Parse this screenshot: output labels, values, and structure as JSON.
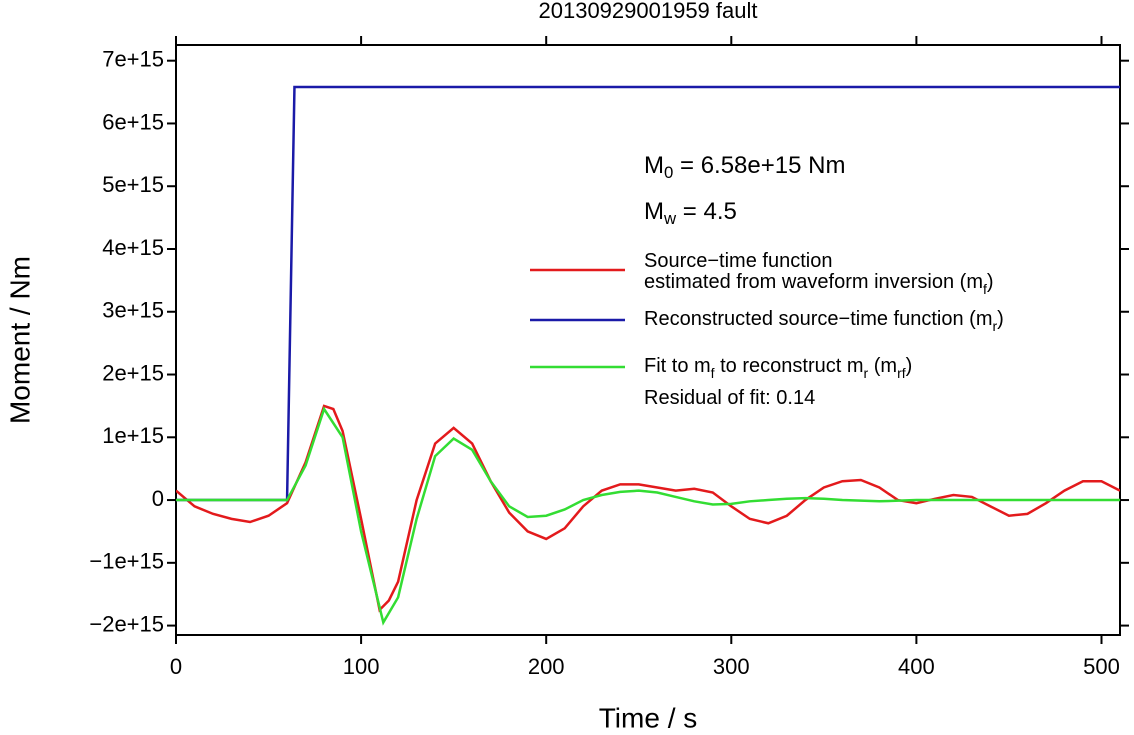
{
  "chart_data": {
    "type": "line",
    "title": "20130929001959 fault",
    "xlabel": "Time / s",
    "ylabel": "Moment / Nm",
    "xlim": [
      0,
      510
    ],
    "ylim": [
      -2150000000000000.0,
      7250000000000000.0
    ],
    "xticks": [
      0,
      100,
      200,
      300,
      400,
      500
    ],
    "yticks": [
      {
        "value": -2000000000000000.0,
        "label": "−2e+15"
      },
      {
        "value": -1000000000000000.0,
        "label": "−1e+15"
      },
      0,
      {
        "value": 1000000000000000.0,
        "label": "1e+15"
      },
      {
        "value": 2000000000000000.0,
        "label": "2e+15"
      },
      {
        "value": 3000000000000000.0,
        "label": "3e+15"
      },
      {
        "value": 4000000000000000.0,
        "label": "4e+15"
      },
      {
        "value": 5000000000000000.0,
        "label": "5e+15"
      },
      {
        "value": 6000000000000000.0,
        "label": "6e+15"
      },
      {
        "value": 7000000000000000.0,
        "label": "7e+15"
      }
    ],
    "annotations": [
      [
        "M",
        "0",
        " = 6.58e+15 Nm"
      ],
      [
        "M",
        "w",
        " = 4.5"
      ]
    ],
    "series": [
      {
        "name": [
          [
            "Source−time function"
          ],
          [
            "estimated from waveform inversion (m",
            "f",
            ")"
          ]
        ],
        "color": "#e31a1c",
        "x": [
          0,
          10,
          20,
          30,
          40,
          50,
          60,
          70,
          80,
          85,
          90,
          100,
          110,
          115,
          120,
          130,
          140,
          150,
          160,
          170,
          180,
          190,
          200,
          210,
          220,
          230,
          240,
          250,
          260,
          270,
          280,
          290,
          300,
          310,
          320,
          330,
          340,
          350,
          360,
          370,
          380,
          390,
          400,
          410,
          420,
          430,
          440,
          450,
          460,
          470,
          480,
          490,
          500,
          510
        ],
        "values": [
          150000000000000.0,
          -100000000000000.0,
          -220000000000000.0,
          -300000000000000.0,
          -350000000000000.0,
          -250000000000000.0,
          -50000000000000.0,
          600000000000000.0,
          1500000000000000.0,
          1450000000000000.0,
          1100000000000000.0,
          -300000000000000.0,
          -1750000000000000.0,
          -1600000000000000.0,
          -1300000000000000.0,
          0,
          900000000000000.0,
          1150000000000000.0,
          900000000000000.0,
          300000000000000.0,
          -200000000000000.0,
          -500000000000000.0,
          -620000000000000.0,
          -450000000000000.0,
          -100000000000000.0,
          150000000000000.0,
          250000000000000.0,
          250000000000000.0,
          200000000000000.0,
          150000000000000.0,
          180000000000000.0,
          120000000000000.0,
          -100000000000000.0,
          -300000000000000.0,
          -370000000000000.0,
          -250000000000000.0,
          0,
          200000000000000.0,
          300000000000000.0,
          320000000000000.0,
          200000000000000.0,
          0,
          -50000000000000.0,
          20000000000000.0,
          80000000000000.0,
          50000000000000.0,
          -100000000000000.0,
          -250000000000000.0,
          -220000000000000.0,
          -50000000000000.0,
          150000000000000.0,
          300000000000000.0,
          300000000000000.0,
          150000000000000.0
        ]
      },
      {
        "name": [
          [
            "Reconstructed source−time function (m",
            "r",
            ")"
          ]
        ],
        "color": "#1a1aa8",
        "x": [
          0,
          60,
          64,
          510
        ],
        "values": [
          0,
          0,
          6580000000000000.0,
          6580000000000000.0
        ]
      },
      {
        "name": [
          [
            "Fit to m",
            "f",
            " to reconstruct m",
            "r",
            " (m",
            "rf",
            ")"
          ],
          [
            "Residual of fit: 0.14"
          ]
        ],
        "color": "#33dd33",
        "x": [
          0,
          60,
          70,
          80,
          90,
          100,
          112,
          120,
          130,
          140,
          150,
          160,
          170,
          180,
          190,
          200,
          210,
          220,
          230,
          240,
          250,
          260,
          270,
          280,
          290,
          300,
          310,
          320,
          330,
          340,
          350,
          360,
          380,
          400,
          450,
          510
        ],
        "values": [
          0,
          0,
          550000000000000.0,
          1450000000000000.0,
          1000000000000000.0,
          -500000000000000.0,
          -1950000000000000.0,
          -1550000000000000.0,
          -300000000000000.0,
          700000000000000.0,
          980000000000000.0,
          800000000000000.0,
          300000000000000.0,
          -100000000000000.0,
          -270000000000000.0,
          -250000000000000.0,
          -150000000000000.0,
          0,
          80000000000000.0,
          130000000000000.0,
          150000000000000.0,
          120000000000000.0,
          50000000000000.0,
          -20000000000000.0,
          -70000000000000.0,
          -60000000000000.0,
          -20000000000000.0,
          0,
          20000000000000.0,
          30000000000000.0,
          20000000000000.0,
          0,
          -20000000000000.0,
          0,
          0,
          0
        ]
      }
    ]
  }
}
